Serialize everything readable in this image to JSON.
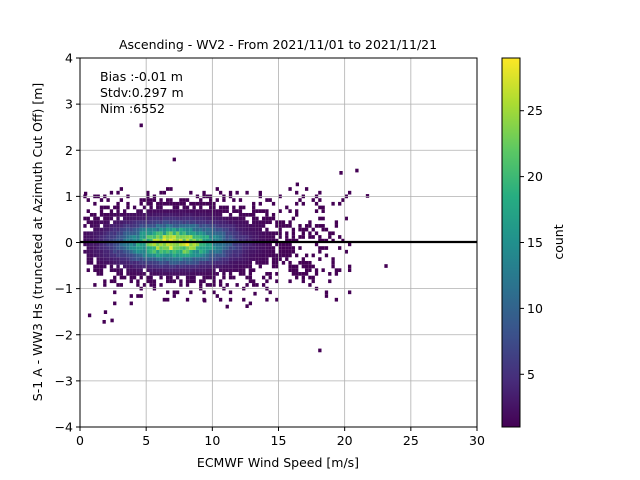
{
  "chart_data": {
    "type": "heatmap",
    "title": "Ascending - WV2 - From 2021/11/01 to 2021/11/21",
    "xlabel": "ECMWF Wind Speed [m/s]",
    "ylabel": "S-1 A - WW3 Hs (truncated at Azimuth Cut Off) [m]",
    "xlim": [
      0,
      30
    ],
    "ylim": [
      -4,
      4
    ],
    "x_ticks": [
      "0",
      "5",
      "10",
      "15",
      "20",
      "25",
      "30"
    ],
    "y_ticks": [
      "−4",
      "−3",
      "−2",
      "−1",
      "0",
      "1",
      "2",
      "3",
      "4"
    ],
    "grid": true,
    "reference_line_y": 0,
    "annotations": [
      "Bias :-0.01 m",
      "Stdv:0.297 m",
      "Nim :6552"
    ],
    "colorbar": {
      "label": "count",
      "range": [
        1,
        29
      ],
      "ticks": [
        "5",
        "10",
        "15",
        "20",
        "25"
      ],
      "colormap": "viridis",
      "colors": [
        "#440154",
        "#472c7a",
        "#3b518b",
        "#2c718e",
        "#21908d",
        "#27ad81",
        "#5cc863",
        "#aadc32",
        "#fde725"
      ]
    },
    "density_peak": {
      "x": 7,
      "y": -0.05,
      "count": 29
    },
    "outliers": [
      {
        "x": 4.5,
        "y": 2.5
      },
      {
        "x": 7.0,
        "y": 1.76
      },
      {
        "x": 20.8,
        "y": 1.52
      },
      {
        "x": 19.6,
        "y": 1.47
      },
      {
        "x": 16.3,
        "y": 1.22
      },
      {
        "x": 21.6,
        "y": 0.97
      },
      {
        "x": 0.3,
        "y": 1.02
      },
      {
        "x": 23.0,
        "y": -0.55
      },
      {
        "x": 18.0,
        "y": -2.38
      },
      {
        "x": 1.7,
        "y": -1.76
      },
      {
        "x": 2.3,
        "y": -1.73
      },
      {
        "x": 0.6,
        "y": -1.62
      },
      {
        "x": 1.8,
        "y": -1.55
      },
      {
        "x": 11.0,
        "y": -1.43
      },
      {
        "x": 12.5,
        "y": -1.42
      },
      {
        "x": 9.3,
        "y": -1.3
      },
      {
        "x": 13.1,
        "y": -1.15
      }
    ]
  }
}
